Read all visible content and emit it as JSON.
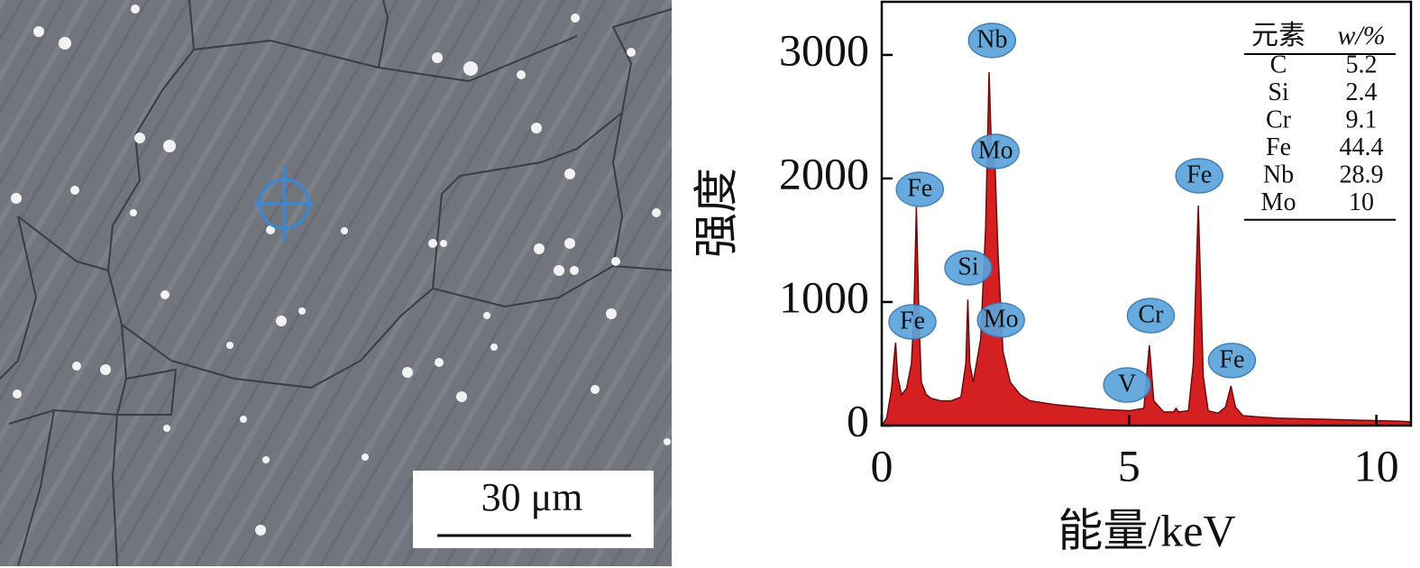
{
  "image": {
    "scale_bar_label": "30 μm"
  },
  "chart_data": {
    "type": "area",
    "ylabel": "强度",
    "xlabel": "能量/keV",
    "color": "#d42020",
    "x": [
      0,
      0.1,
      0.2,
      0.25,
      0.28,
      0.32,
      0.4,
      0.5,
      0.6,
      0.65,
      0.7,
      0.75,
      0.8,
      0.9,
      1.0,
      1.2,
      1.4,
      1.6,
      1.7,
      1.74,
      1.78,
      1.85,
      2.0,
      2.1,
      2.17,
      2.22,
      2.29,
      2.35,
      2.45,
      2.6,
      2.8,
      3.0,
      3.5,
      4.0,
      4.5,
      5.0,
      5.3,
      5.41,
      5.5,
      5.7,
      5.9,
      5.95,
      6.0,
      6.2,
      6.3,
      6.4,
      6.5,
      6.6,
      6.8,
      6.95,
      7.06,
      7.15,
      7.3,
      7.6,
      8,
      8.5,
      9,
      9.5,
      10,
      10.5,
      10.7
    ],
    "values": [
      0,
      60,
      300,
      550,
      670,
      400,
      250,
      300,
      500,
      900,
      1770,
      900,
      350,
      250,
      220,
      200,
      200,
      230,
      500,
      1020,
      500,
      350,
      700,
      1600,
      2860,
      2200,
      2100,
      1400,
      600,
      350,
      250,
      200,
      170,
      150,
      130,
      120,
      140,
      650,
      200,
      110,
      110,
      140,
      110,
      120,
      500,
      1780,
      400,
      120,
      100,
      150,
      320,
      150,
      80,
      70,
      60,
      55,
      50,
      45,
      40,
      35,
      30
    ],
    "xlim": [
      0,
      10.7
    ],
    "ylim": [
      0,
      3430
    ],
    "xticks": [
      0,
      5,
      10
    ],
    "yticks": [
      0,
      1000,
      2000,
      3000
    ],
    "annotations": [
      {
        "text": "Nb",
        "x": 2.23,
        "y": 3117
      },
      {
        "text": "Mo",
        "x": 2.3,
        "y": 2219
      },
      {
        "text": "Fe",
        "x": 0.77,
        "y": 1912
      },
      {
        "text": "Si",
        "x": 1.75,
        "y": 1277
      },
      {
        "text": "Fe",
        "x": 0.62,
        "y": 839
      },
      {
        "text": "Mo",
        "x": 2.41,
        "y": 854
      },
      {
        "text": "Cr",
        "x": 5.44,
        "y": 890
      },
      {
        "text": "V",
        "x": 4.96,
        "y": 328
      },
      {
        "text": "Fe",
        "x": 6.42,
        "y": 2022
      },
      {
        "text": "Fe",
        "x": 7.08,
        "y": 526
      }
    ],
    "table": {
      "columns": [
        "元素",
        "w/%"
      ],
      "rows": [
        [
          "C",
          5.2
        ],
        [
          "Si",
          2.4
        ],
        [
          "Cr",
          9.1
        ],
        [
          "Fe",
          44.4
        ],
        [
          "Nb",
          28.9
        ],
        [
          "Mo",
          10
        ]
      ]
    }
  }
}
